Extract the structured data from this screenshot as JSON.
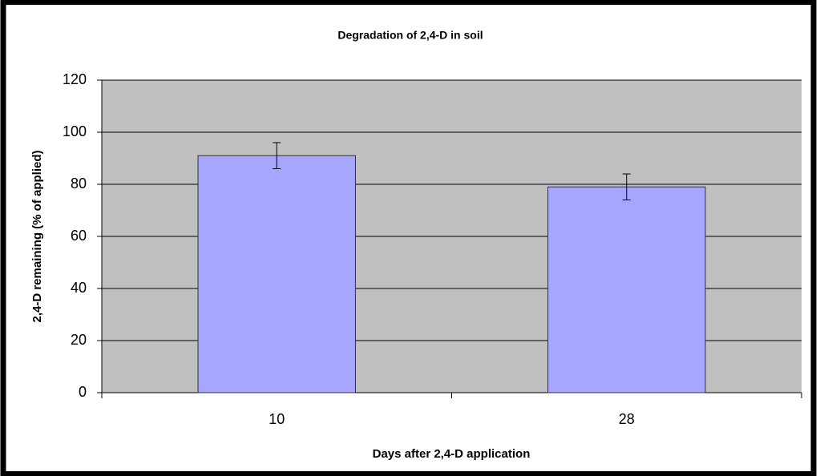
{
  "chart_data": {
    "type": "bar",
    "title": "Degradation of 2,4-D in soil",
    "x_label": "Days after 2,4-D application",
    "y_label": "2,4-D remaining (% of applied)",
    "categories": [
      "10",
      "28"
    ],
    "values": [
      91,
      79
    ],
    "errors": [
      5,
      5
    ],
    "color": "#a6a6ff",
    "ylim": [
      0,
      120
    ],
    "yticks": [
      0,
      20,
      40,
      60,
      80,
      100,
      120
    ],
    "grid": true
  }
}
